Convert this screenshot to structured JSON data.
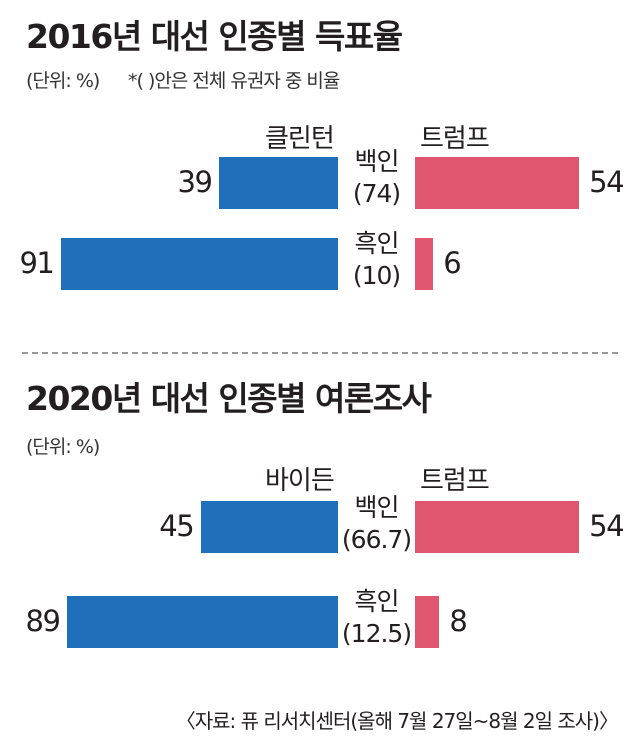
{
  "colors": {
    "clinton_biden": "#1f6fba",
    "trump": "#e0566e",
    "text": "#231f20"
  },
  "chart_data": [
    {
      "type": "bar",
      "title": "2016년 대선 인종별 득표율",
      "unit_note": "(단위: %)",
      "footnote": "*( )안은 전체 유권자 중 비율",
      "series": [
        {
          "name": "클린턴",
          "side": "left",
          "color": "#1f6fba",
          "values": [
            39,
            91
          ]
        },
        {
          "name": "트럼프",
          "side": "right",
          "color": "#e0566e",
          "values": [
            54,
            6
          ]
        }
      ],
      "categories": [
        {
          "label": "백인",
          "share": "(74)"
        },
        {
          "label": "흑인",
          "share": "(10)"
        }
      ]
    },
    {
      "type": "bar",
      "title": "2020년 대선 인종별 여론조사",
      "unit_note": "(단위: %)",
      "series": [
        {
          "name": "바이든",
          "side": "left",
          "color": "#1f6fba",
          "values": [
            45,
            89
          ]
        },
        {
          "name": "트럼프",
          "side": "right",
          "color": "#e0566e",
          "values": [
            54,
            8
          ]
        }
      ],
      "categories": [
        {
          "label": "백인",
          "share": "(66.7)"
        },
        {
          "label": "흑인",
          "share": "(12.5)"
        }
      ]
    }
  ],
  "source": "〈자료: 퓨 리서치센터(올해 7월 27일~8월 2일 조사)〉"
}
